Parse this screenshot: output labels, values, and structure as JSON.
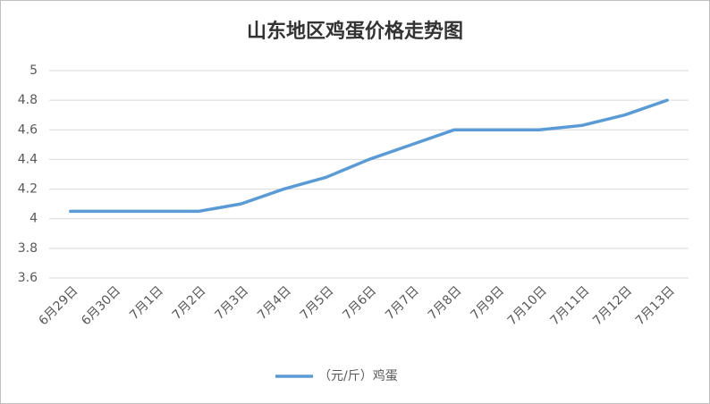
{
  "chart_data": {
    "type": "line",
    "title": "山东地区鸡蛋价格走势图",
    "categories": [
      "6月29日",
      "6月30日",
      "7月1日",
      "7月2日",
      "7月3日",
      "7月4日",
      "7月5日",
      "7月6日",
      "7月7日",
      "7月8日",
      "7月9日",
      "7月10日",
      "7月11日",
      "7月12日",
      "7月13日"
    ],
    "series": [
      {
        "name": "（元/斤）鸡蛋",
        "color": "#5b9bd5",
        "values": [
          4.05,
          4.05,
          4.05,
          4.05,
          4.1,
          4.2,
          4.28,
          4.4,
          4.5,
          4.6,
          4.6,
          4.6,
          4.63,
          4.7,
          4.8
        ]
      }
    ],
    "ylim": [
      3.6,
      5
    ],
    "yticks": [
      3.6,
      3.8,
      4,
      4.2,
      4.4,
      4.6,
      4.8,
      5
    ],
    "grid": true,
    "legend": "bottom"
  }
}
